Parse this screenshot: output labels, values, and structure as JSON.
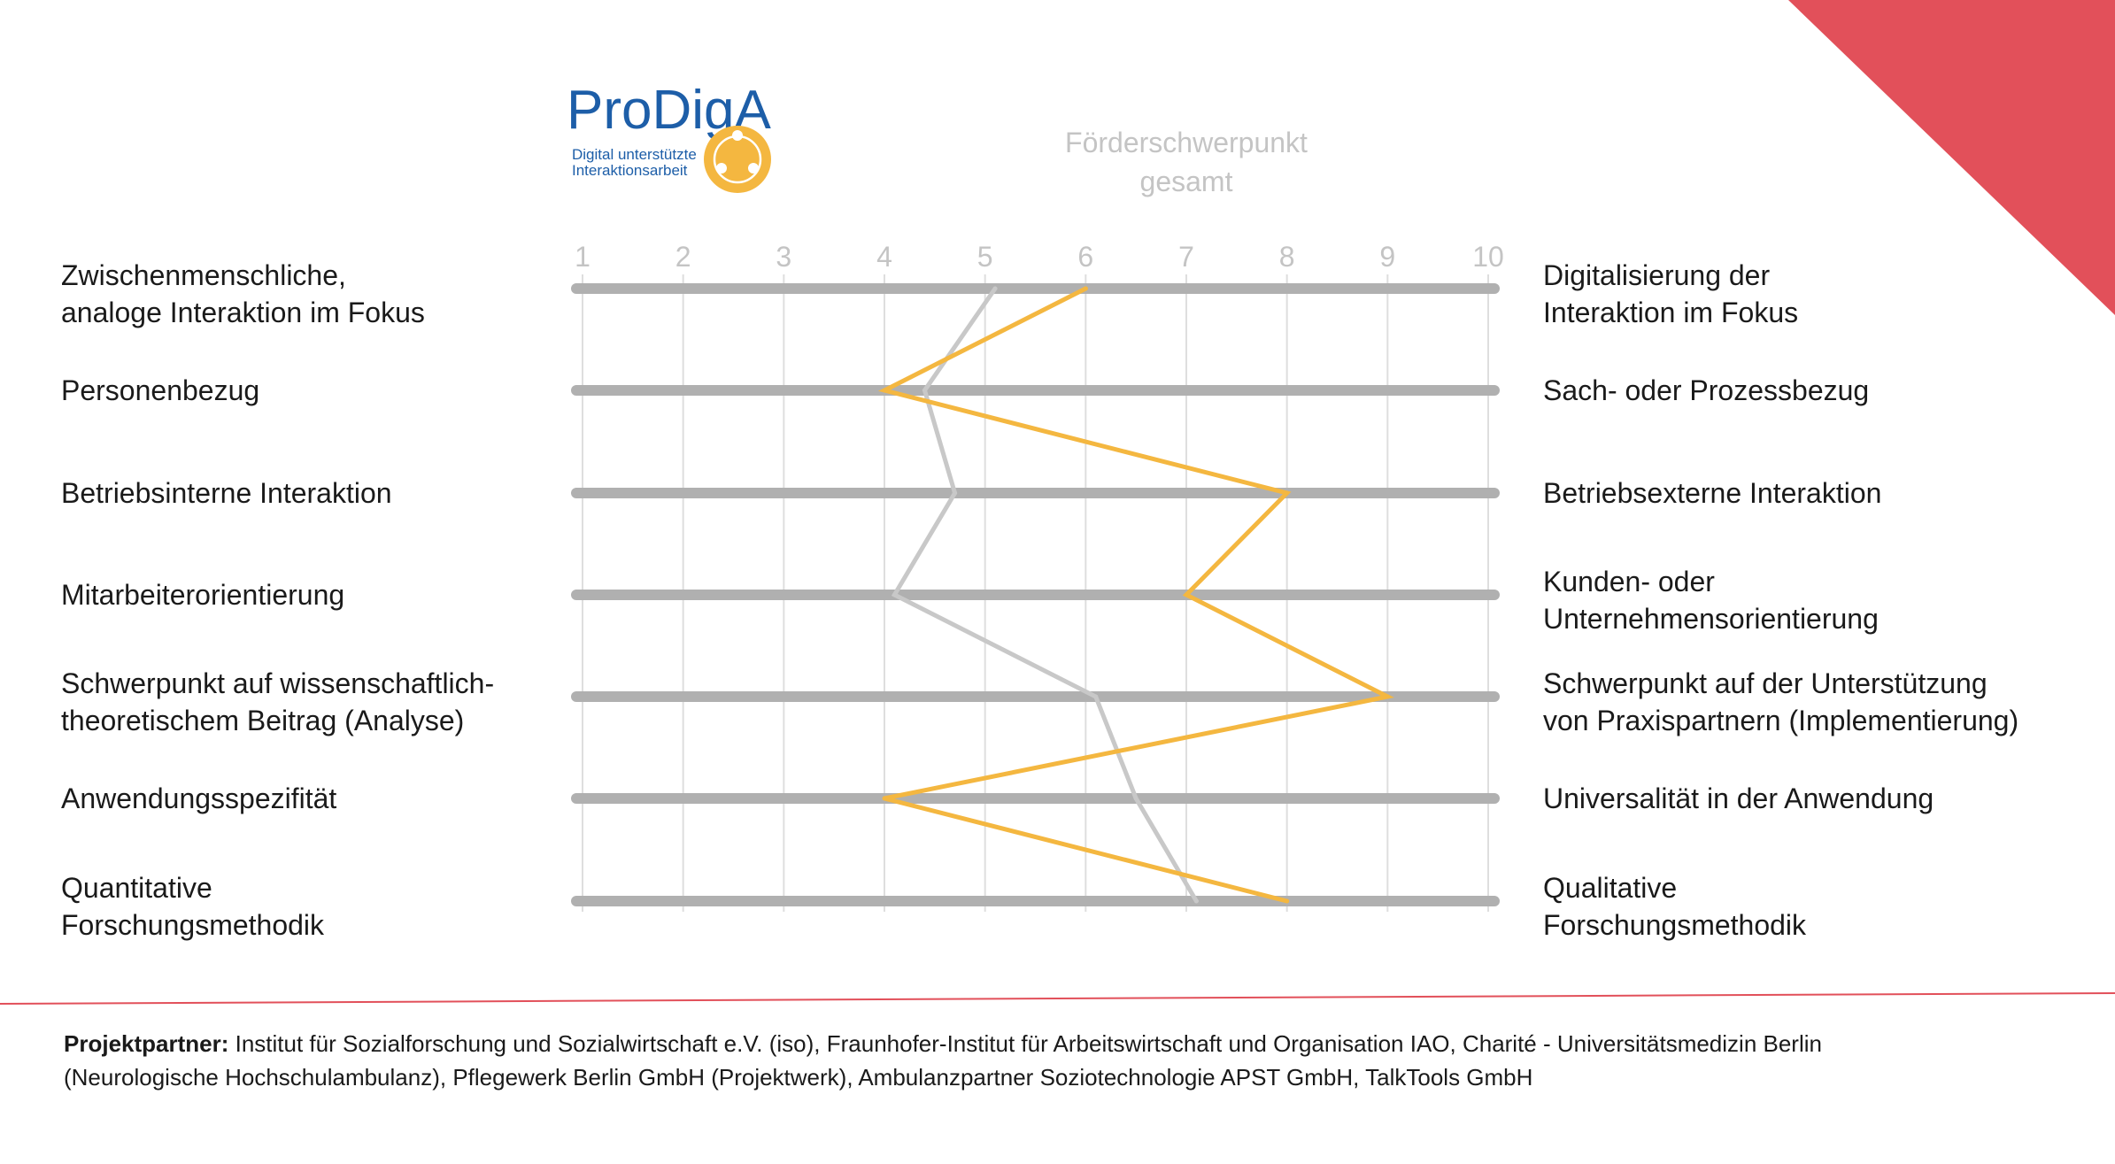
{
  "logo": {
    "name": "ProDigA",
    "tagline_1": "Digital unterstützte",
    "tagline_2": "Interaktionsarbeit"
  },
  "colors": {
    "accent_red": "#e2505a",
    "series_orange": "#f4b740",
    "series_gray": "#c8c8c8",
    "bar_gray": "#b0b0b0",
    "grid_gray": "#dedede",
    "logo_blue": "#1d5ea8",
    "logo_orange": "#f4b740"
  },
  "chart_data": {
    "type": "line",
    "title_1": "Förderschwerpunkt",
    "title_2": "gesamt",
    "xlim": [
      1,
      10
    ],
    "ticks": [
      "1",
      "2",
      "3",
      "4",
      "5",
      "6",
      "7",
      "8",
      "9",
      "10"
    ],
    "rows": [
      {
        "left_1": "Zwischenmenschliche,",
        "left_2": "analoge Interaktion im Fokus",
        "right_1": "Digitalisierung der",
        "right_2": "Interaktion im Fokus"
      },
      {
        "left_1": "Personenbezug",
        "left_2": "",
        "right_1": "Sach- oder Prozessbezug",
        "right_2": ""
      },
      {
        "left_1": "Betriebsinterne Interaktion",
        "left_2": "",
        "right_1": "Betriebsexterne Interaktion",
        "right_2": ""
      },
      {
        "left_1": "Mitarbeiterorientierung",
        "left_2": "",
        "right_1": "Kunden- oder",
        "right_2": "Unternehmensorientierung"
      },
      {
        "left_1": "Schwerpunkt auf wissenschaftlich-",
        "left_2": "theoretischem Beitrag (Analyse)",
        "right_1": "Schwerpunkt auf der Unterstützung",
        "right_2": "von Praxispartnern (Implementierung)"
      },
      {
        "left_1": "Anwendungsspezifität",
        "left_2": "",
        "right_1": "Universalität in der Anwendung",
        "right_2": ""
      },
      {
        "left_1": "Quantitative",
        "left_2": "Forschungsmethodik",
        "right_1": "Qualitative",
        "right_2": "Forschungsmethodik"
      }
    ],
    "series": [
      {
        "values": [
          6,
          4,
          8,
          7,
          9,
          4,
          8
        ],
        "color": "#f4b740"
      },
      {
        "values": [
          5.1,
          4.4,
          4.7,
          4.1,
          6.1,
          6.5,
          7.1
        ],
        "color": "#c8c8c8"
      }
    ]
  },
  "footer": {
    "label": "Projektpartner:",
    "line_1": " Institut für Sozialforschung und Sozialwirtschaft e.V. (iso), Fraunhofer-Institut für Arbeitswirtschaft und Organisation IAO, Charité - Universitätsmedizin Berlin",
    "line_2": "(Neurologische Hochschulambulanz), Pflegewerk Berlin GmbH (Projektwerk), Ambulanzpartner Soziotechnologie APST GmbH, TalkTools GmbH"
  }
}
